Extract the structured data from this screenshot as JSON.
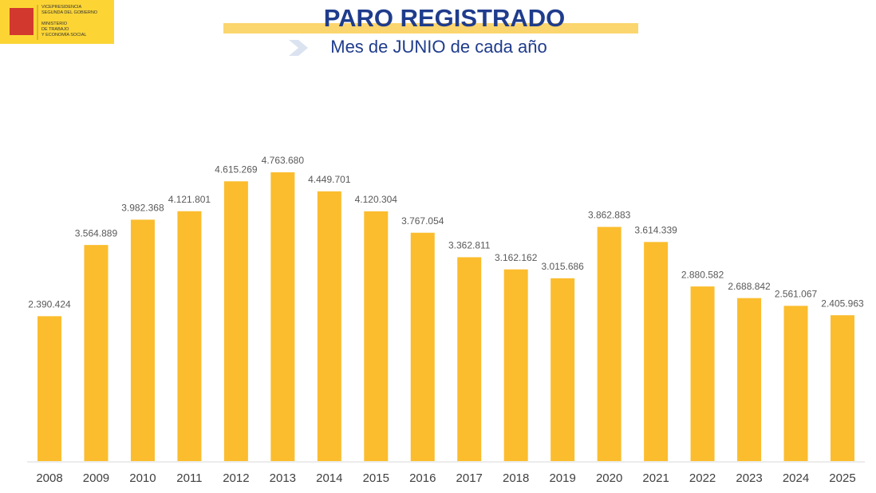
{
  "logo": [
    "VICEPRESIDENCIA",
    "SEGUNDA DEL GOBIERNO",
    "MINISTERIO",
    "DE TRABAJO",
    "Y ECONOMÍA SOCIAL"
  ],
  "chart_data": {
    "type": "bar",
    "title": "PARO REGISTRADO",
    "subtitle": "Mes de JUNIO de cada año",
    "categories": [
      "2008",
      "2009",
      "2010",
      "2011",
      "2012",
      "2013",
      "2014",
      "2015",
      "2016",
      "2017",
      "2018",
      "2019",
      "2020",
      "2021",
      "2022",
      "2023",
      "2024",
      "2025"
    ],
    "values": [
      2390424,
      3564889,
      3982368,
      4121801,
      4615269,
      4763680,
      4449701,
      4120304,
      3767054,
      3362811,
      3162162,
      3015686,
      3862883,
      3614339,
      2880582,
      2688842,
      2561067,
      2405963
    ],
    "value_labels": [
      "2.390.424",
      "3.564.889",
      "3.982.368",
      "4.121.801",
      "4.615.269",
      "4.763.680",
      "4.449.701",
      "4.120.304",
      "3.767.054",
      "3.362.811",
      "3.162.162",
      "3.015.686",
      "3.862.883",
      "3.614.339",
      "2.880.582",
      "2.688.842",
      "2.561.067",
      "2.405.963"
    ],
    "color": "#fbbd2e"
  }
}
